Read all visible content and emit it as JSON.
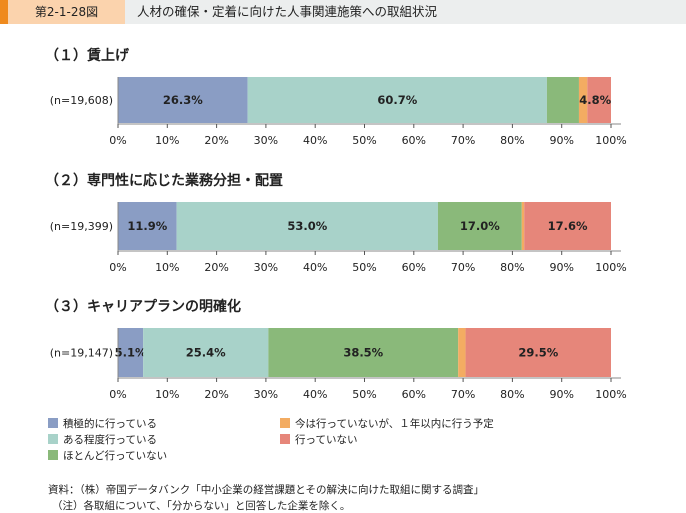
{
  "header": {
    "figure_number": "第2-1-28図",
    "title": "人材の確保・定着に向けた人事関連施策への取組状況"
  },
  "colors": [
    "#8a9dc4",
    "#a8d2c9",
    "#8ab97a",
    "#f3ac62",
    "#e6867a"
  ],
  "legend": [
    "積極的に行っている",
    "ある程度行っている",
    "ほとんど行っていない",
    "今は行っていないが、１年以内に行う予定",
    "行っていない"
  ],
  "chart_data": [
    {
      "type": "bar",
      "orientation": "horizontal",
      "stacked": true,
      "title": "（１）賃上げ",
      "category": "(n=19,608)",
      "values": [
        26.3,
        60.7,
        6.5,
        1.7,
        4.8
      ],
      "labels": [
        "26.3%",
        "60.7%",
        "",
        "",
        "4.8%"
      ],
      "xlim": [
        0,
        100
      ]
    },
    {
      "type": "bar",
      "orientation": "horizontal",
      "stacked": true,
      "title": "（２）専門性に応じた業務分担・配置",
      "category": "(n=19,399)",
      "values": [
        11.9,
        53.0,
        17.0,
        0.5,
        17.6
      ],
      "labels": [
        "11.9%",
        "53.0%",
        "17.0%",
        "",
        "17.6%"
      ],
      "xlim": [
        0,
        100
      ]
    },
    {
      "type": "bar",
      "orientation": "horizontal",
      "stacked": true,
      "title": "（３）キャリアプランの明確化",
      "category": "(n=19,147)",
      "values": [
        5.1,
        25.4,
        38.5,
        1.5,
        29.5
      ],
      "labels": [
        "5.1%",
        "25.4%",
        "38.5%",
        "",
        "29.5%"
      ],
      "xlim": [
        0,
        100
      ]
    }
  ],
  "ticks": [
    "0%",
    "10%",
    "20%",
    "30%",
    "40%",
    "50%",
    "60%",
    "70%",
    "80%",
    "90%",
    "100%"
  ],
  "notes": [
    "資料：（株）帝国データバンク「中小企業の経営課題とその解決に向けた取組に関する調査」",
    "（注）各取組について、「分からない」と回答した企業を除く。"
  ]
}
